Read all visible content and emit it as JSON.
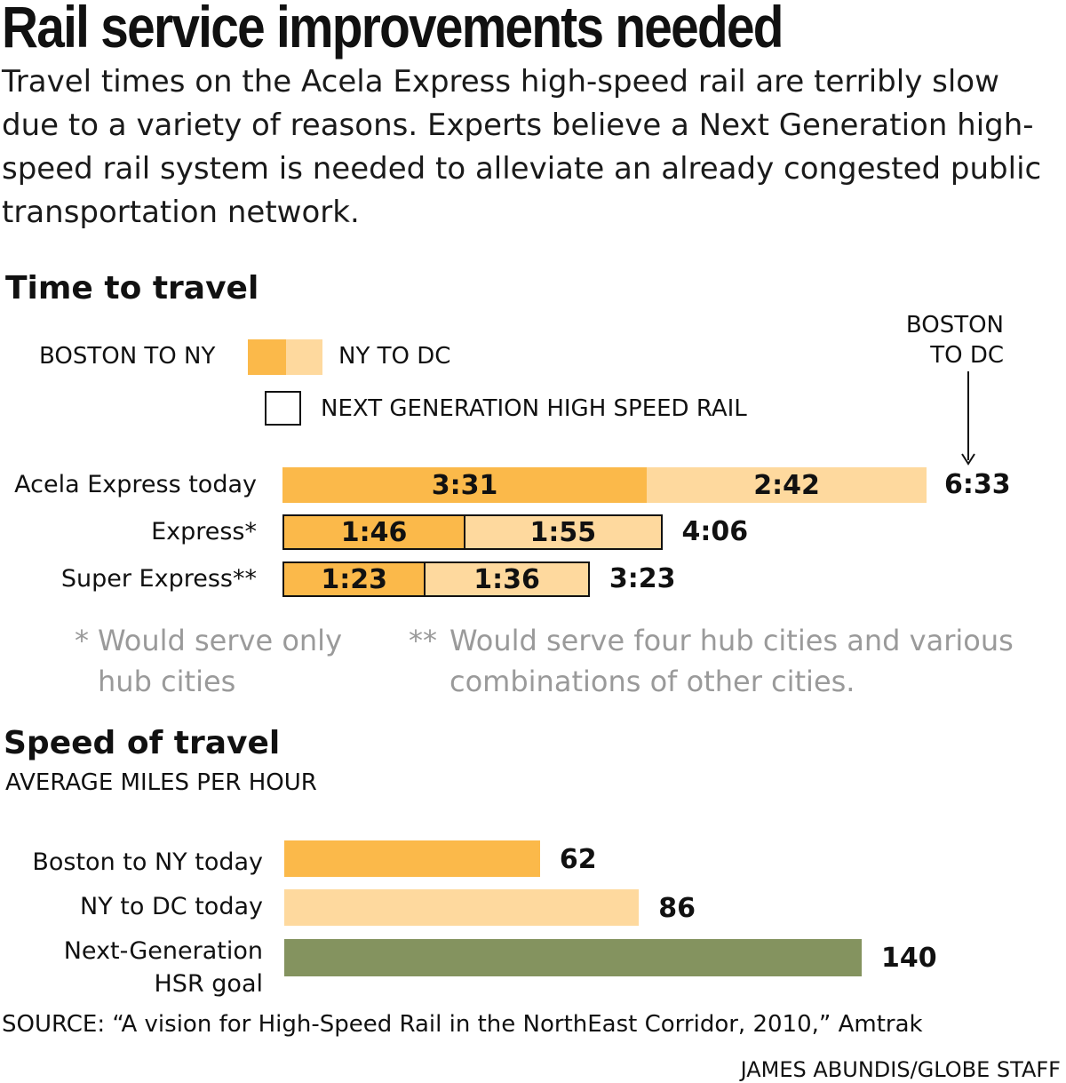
{
  "title": "Rail service improvements needed",
  "subtitle": "Travel times on the Acela Express high-speed rail are terribly slow due to a variety of reasons. Experts believe a Next Generation high-speed rail system is needed to alleviate an already congested public transportation network.",
  "colors": {
    "boston_ny": "#fbb94a",
    "ny_dc": "#fed99e",
    "next_gen": "#84935f",
    "note_gray": "#9a9a9a"
  },
  "time_chart": {
    "section_title": "Time to travel",
    "legend": {
      "boston_ny": "BOSTON TO NY",
      "ny_dc": "NY TO DC",
      "next_gen": "NEXT GENERATION HIGH SPEED RAIL"
    },
    "annotation": {
      "line1": "BOSTON",
      "line2": "TO DC"
    },
    "notes": {
      "express_mark": "*",
      "express_text": "Would serve only hub cities",
      "super_mark": "**",
      "super_text": "Would serve four hub cities and various combinations of other cities."
    }
  },
  "speed_chart": {
    "section_title": "Speed of travel",
    "subtitle": "AVERAGE MILES PER HOUR"
  },
  "chart_data": [
    {
      "type": "bar",
      "title": "Time to travel",
      "orientation": "horizontal",
      "stacked": true,
      "unit": "hours:minutes",
      "categories": [
        "Acela Express today",
        "Express*",
        "Super Express**"
      ],
      "series": [
        {
          "name": "BOSTON TO NY",
          "values": [
            "3:31",
            "1:46",
            "1:23"
          ],
          "minutes": [
            211,
            106,
            83
          ]
        },
        {
          "name": "NY TO DC",
          "values": [
            "2:42",
            "1:55",
            "1:36"
          ],
          "minutes": [
            162,
            115,
            96
          ]
        }
      ],
      "totals": [
        "6:33",
        "4:06",
        "3:23"
      ],
      "next_generation": [
        false,
        true,
        true
      ]
    },
    {
      "type": "bar",
      "title": "Speed of travel",
      "subtitle": "AVERAGE MILES PER HOUR",
      "orientation": "horizontal",
      "categories": [
        "Boston to NY today",
        "NY to DC today",
        "Next-Generation HSR goal"
      ],
      "values": [
        62,
        86,
        140
      ],
      "colors": [
        "#fbb94a",
        "#fed99e",
        "#84935f"
      ]
    }
  ],
  "source": "SOURCE: “A vision for High-Speed Rail in the NorthEast Corridor, 2010,” Amtrak",
  "credit": "JAMES ABUNDIS/GLOBE STAFF"
}
